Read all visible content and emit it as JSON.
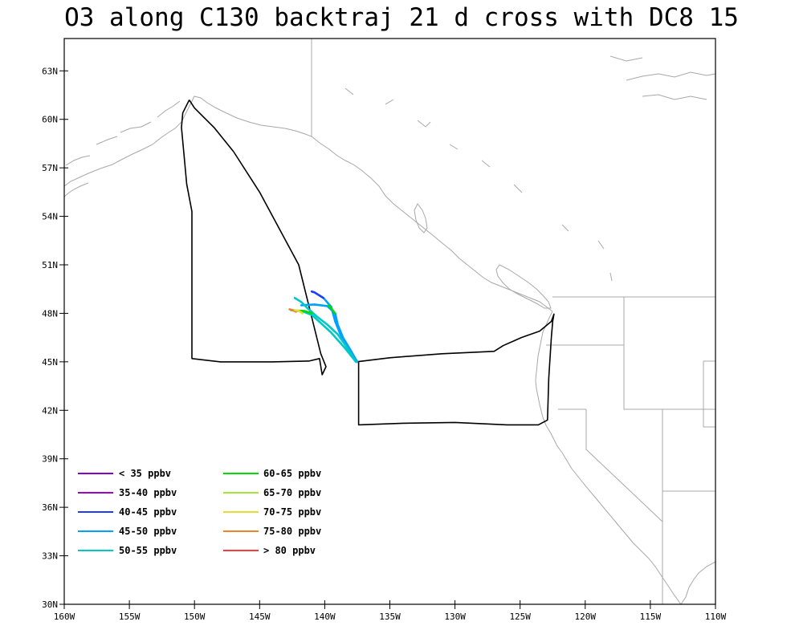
{
  "title": "O3 along C130 backtraj 21 d cross with DC8 15",
  "chart_data": {
    "type": "map",
    "projection": "lat-lon",
    "xlim": [
      -160,
      -110
    ],
    "ylim": [
      30,
      65
    ],
    "x_ticks": [
      {
        "value": -160,
        "label": "160W"
      },
      {
        "value": -155,
        "label": "155W"
      },
      {
        "value": -150,
        "label": "150W"
      },
      {
        "value": -145,
        "label": "145W"
      },
      {
        "value": -140,
        "label": "140W"
      },
      {
        "value": -135,
        "label": "135W"
      },
      {
        "value": -130,
        "label": "130W"
      },
      {
        "value": -125,
        "label": "125W"
      },
      {
        "value": -120,
        "label": "120W"
      },
      {
        "value": -115,
        "label": "115W"
      },
      {
        "value": -110,
        "label": "110W"
      }
    ],
    "y_ticks": [
      {
        "value": 30,
        "label": "30N"
      },
      {
        "value": 33,
        "label": "33N"
      },
      {
        "value": 36,
        "label": "36N"
      },
      {
        "value": 39,
        "label": "39N"
      },
      {
        "value": 42,
        "label": "42N"
      },
      {
        "value": 45,
        "label": "45N"
      },
      {
        "value": 48,
        "label": "48N"
      },
      {
        "value": 51,
        "label": "51N"
      },
      {
        "value": 54,
        "label": "54N"
      },
      {
        "value": 57,
        "label": "57N"
      },
      {
        "value": 60,
        "label": "60N"
      },
      {
        "value": 63,
        "label": "63N"
      }
    ],
    "grid": false,
    "legend_position": "bottom-left",
    "legend": [
      {
        "label": "< 35 ppbv",
        "color": "#8a00c8"
      },
      {
        "label": "35-40 ppbv",
        "color": "#a000c8"
      },
      {
        "label": "40-45 ppbv",
        "color": "#1e3cff"
      },
      {
        "label": "45-50 ppbv",
        "color": "#00a0ff"
      },
      {
        "label": "50-55 ppbv",
        "color": "#00c8c8"
      },
      {
        "label": "60-65 ppbv",
        "color": "#00dc00"
      },
      {
        "label": "65-70 ppbv",
        "color": "#a0e632"
      },
      {
        "label": "70-75 ppbv",
        "color": "#e6dc32"
      },
      {
        "label": "75-80 ppbv",
        "color": "#f08228"
      },
      {
        "label": "> 80 ppbv",
        "color": "#fa3c3c"
      }
    ],
    "flight_tracks": [
      {
        "name": "dc8-track",
        "color": "#000000",
        "points": [
          [
            -150.4,
            61.2
          ],
          [
            -150.9,
            60.4
          ],
          [
            -151.0,
            59.5
          ],
          [
            -150.6,
            56.0
          ],
          [
            -150.2,
            54.3
          ],
          [
            -150.2,
            45.2
          ],
          [
            -148.0,
            45.0
          ],
          [
            -144.0,
            45.0
          ],
          [
            -141.2,
            45.05
          ],
          [
            -140.4,
            45.2
          ],
          [
            -140.2,
            44.2
          ],
          [
            -139.9,
            44.7
          ],
          [
            -140.3,
            45.5
          ],
          [
            -142.0,
            51.0
          ],
          [
            -145.0,
            55.5
          ],
          [
            -147.0,
            58.0
          ],
          [
            -148.5,
            59.5
          ],
          [
            -150.0,
            60.7
          ],
          [
            -150.4,
            61.2
          ]
        ]
      },
      {
        "name": "c130-track",
        "color": "#000000",
        "points": [
          [
            -137.6,
            45.0
          ],
          [
            -135.0,
            45.25
          ],
          [
            -131.0,
            45.5
          ],
          [
            -127.0,
            45.65
          ],
          [
            -126.3,
            46.0
          ],
          [
            -124.9,
            46.5
          ],
          [
            -123.5,
            46.9
          ],
          [
            -122.6,
            47.5
          ],
          [
            -122.4,
            47.95
          ],
          [
            -122.5,
            47.5
          ],
          [
            -122.6,
            46.5
          ],
          [
            -122.8,
            44.0
          ],
          [
            -122.9,
            41.4
          ],
          [
            -123.6,
            41.1
          ],
          [
            -126.0,
            41.1
          ],
          [
            -130.0,
            41.25
          ],
          [
            -134.0,
            41.2
          ],
          [
            -137.4,
            41.1
          ],
          [
            -137.4,
            45.0
          ]
        ]
      }
    ],
    "backtrajectories": [
      {
        "name": "backtraj-1",
        "color": "#00a0ff",
        "points": [
          [
            -137.5,
            45.0
          ],
          [
            -138.2,
            45.8
          ],
          [
            -138.8,
            46.7
          ],
          [
            -139.2,
            47.5
          ],
          [
            -139.5,
            48.4
          ],
          [
            -140.1,
            48.95
          ],
          [
            -140.8,
            49.3
          ],
          [
            -141.0,
            49.35
          ]
        ]
      },
      {
        "name": "backtraj-2",
        "color": "#1e3cff",
        "points": [
          [
            -140.1,
            48.95
          ],
          [
            -140.8,
            49.3
          ],
          [
            -141.0,
            49.35
          ]
        ]
      },
      {
        "name": "backtraj-3",
        "color": "#00a0ff",
        "points": [
          [
            -137.5,
            45.0
          ],
          [
            -138.0,
            45.7
          ],
          [
            -138.6,
            46.5
          ],
          [
            -139.0,
            47.3
          ],
          [
            -139.2,
            48.0
          ],
          [
            -139.8,
            48.45
          ],
          [
            -140.8,
            48.55
          ],
          [
            -141.8,
            48.5
          ]
        ]
      },
      {
        "name": "backtraj-4",
        "color": "#00dc00",
        "points": [
          [
            -139.2,
            48.0
          ],
          [
            -139.5,
            48.3
          ],
          [
            -139.7,
            48.5
          ]
        ]
      },
      {
        "name": "backtraj-5",
        "color": "#00c8c8",
        "points": [
          [
            -137.6,
            45.0
          ],
          [
            -138.3,
            45.9
          ],
          [
            -139.0,
            46.7
          ],
          [
            -139.8,
            47.3
          ],
          [
            -140.6,
            47.8
          ],
          [
            -141.3,
            48.3
          ],
          [
            -141.8,
            48.7
          ],
          [
            -142.3,
            48.95
          ]
        ]
      },
      {
        "name": "backtraj-6",
        "color": "#00c8c8",
        "points": [
          [
            -137.6,
            45.0
          ],
          [
            -138.5,
            45.9
          ],
          [
            -139.5,
            46.8
          ],
          [
            -140.3,
            47.4
          ],
          [
            -141.0,
            47.9
          ],
          [
            -141.8,
            48.15
          ],
          [
            -142.6,
            48.2
          ]
        ]
      },
      {
        "name": "backtraj-7",
        "color": "#00dc00",
        "points": [
          [
            -141.0,
            48.0
          ],
          [
            -141.6,
            48.15
          ],
          [
            -142.2,
            48.15
          ]
        ]
      },
      {
        "name": "backtraj-8",
        "color": "#f08228",
        "points": [
          [
            -142.2,
            48.1
          ],
          [
            -142.5,
            48.2
          ],
          [
            -142.7,
            48.25
          ]
        ]
      },
      {
        "name": "backtraj-9",
        "color": "#e6dc32",
        "points": [
          [
            -141.7,
            48.0
          ],
          [
            -142.0,
            48.15
          ],
          [
            -142.3,
            48.2
          ]
        ]
      }
    ]
  }
}
